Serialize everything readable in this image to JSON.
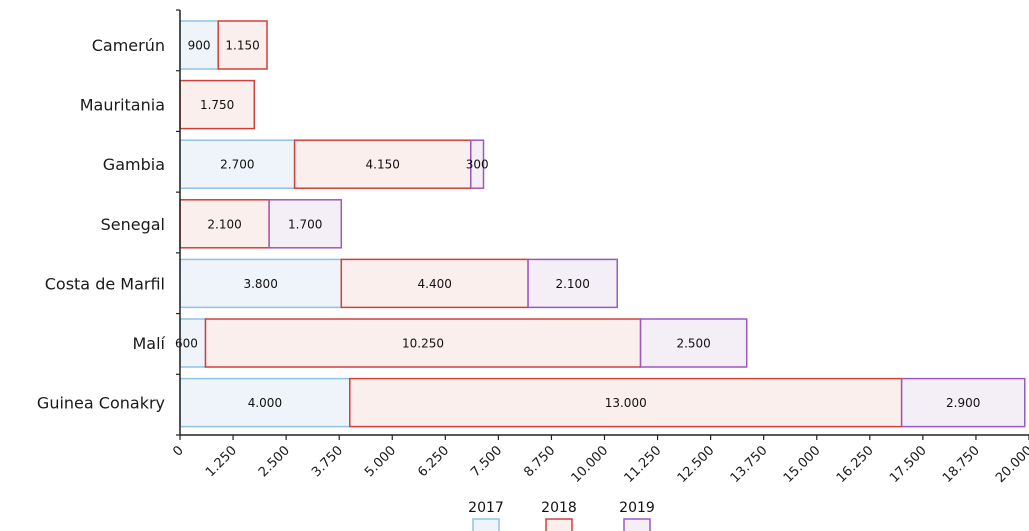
{
  "chart_data": {
    "type": "bar",
    "orientation": "horizontal",
    "stacked": true,
    "categories": [
      "Camerún",
      "Mauritania",
      "Gambia",
      "Senegal",
      "Costa de Marfil",
      "Malí",
      "Guinea Conakry"
    ],
    "series": [
      {
        "name": "2017",
        "values": [
          900,
          0,
          2700,
          0,
          3800,
          600,
          4000
        ],
        "fill": "#eef4f9",
        "stroke": "#8fc3e6"
      },
      {
        "name": "2018",
        "values": [
          1150,
          1750,
          4150,
          2100,
          4400,
          10250,
          13000
        ],
        "fill": "#fbefee",
        "stroke": "#d0403b"
      },
      {
        "name": "2019",
        "values": [
          0,
          0,
          300,
          1700,
          2100,
          2500,
          2900
        ],
        "fill": "#f4eff7",
        "stroke": "#9b59c0"
      }
    ],
    "data_labels": [
      [
        "900",
        "",
        "2.700",
        "",
        "3.800",
        "600",
        "4.000"
      ],
      [
        "1.150",
        "1.750",
        "4.150",
        "2.100",
        "4.400",
        "10.250",
        "13.000"
      ],
      [
        "",
        "",
        "300",
        "1.700",
        "2.100",
        "2.500",
        "2.900"
      ]
    ],
    "xlim": [
      0,
      20000
    ],
    "ticks": [
      0,
      1250,
      2500,
      3750,
      5000,
      6250,
      7500,
      8750,
      10000,
      11250,
      12500,
      13750,
      15000,
      16250,
      17500,
      18750,
      20000
    ],
    "tick_labels": [
      "0",
      "1.250",
      "2.500",
      "3.750",
      "5.000",
      "6.250",
      "7.500",
      "8.750",
      "10.000",
      "11.250",
      "12.500",
      "13.750",
      "15.000",
      "16.250",
      "17.500",
      "18.750",
      "20.000"
    ],
    "legend_position": "bottom",
    "grid": false,
    "title": "",
    "xlabel": "",
    "ylabel": ""
  }
}
